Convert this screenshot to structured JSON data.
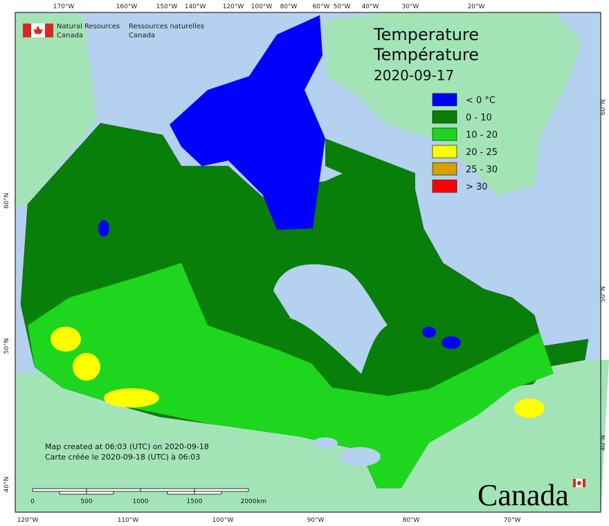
{
  "header": {
    "org_en_line1": "Natural Resources",
    "org_en_line2": "Canada",
    "org_fr_line1": "Ressources naturelles",
    "org_fr_line2": "Canada"
  },
  "title": {
    "en": "Temperature",
    "fr": "Température",
    "date": "2020-09-17"
  },
  "legend": [
    {
      "label": "< 0 °C",
      "color": "#0000ff"
    },
    {
      "label": "0 - 10",
      "color": "#087f08"
    },
    {
      "label": "10 - 20",
      "color": "#1ed61e"
    },
    {
      "label": "20 - 25",
      "color": "#ffff00"
    },
    {
      "label": "25 - 30",
      "color": "#d9a000"
    },
    {
      "label": "> 30",
      "color": "#ff0000"
    }
  ],
  "top_axis": [
    "170°W",
    "160°W",
    "150°W",
    "140°W",
    "120°W",
    "100°W",
    "80°W",
    "60°W",
    "50°W",
    "40°W",
    "30°W",
    "20°W"
  ],
  "bottom_axis": [
    "120°W",
    "110°W",
    "100°W",
    "90°W",
    "80°W",
    "70°W"
  ],
  "left_axis": [
    "60°N",
    "50°N",
    "40°N"
  ],
  "right_axis": [
    "60°N",
    "50°N",
    "40°N"
  ],
  "footer": {
    "created_en": "Map created at 06:03 (UTC) on 2020-09-18",
    "created_fr": "Carte créée le 2020-09-18 (UTC) à 06:03"
  },
  "scale_bar": {
    "labels": [
      "0",
      "500",
      "1000",
      "1500",
      "2000"
    ],
    "unit": "km"
  },
  "wordmark": "Canada"
}
